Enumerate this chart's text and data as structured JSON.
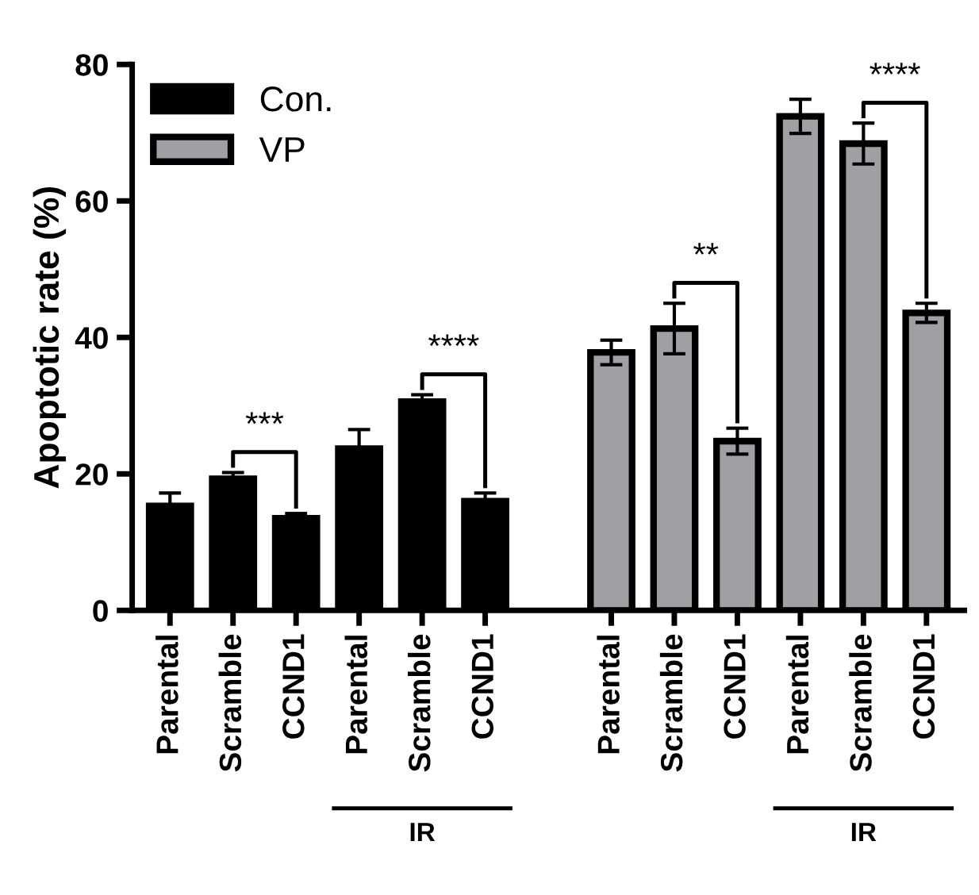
{
  "chart_data": {
    "type": "bar",
    "ylabel": "Apoptotic rate (%)",
    "categories": [
      "Parental",
      "Scramble",
      "CCND1",
      "Parental",
      "Scramble",
      "CCND1",
      null,
      "Parental",
      "Scramble",
      "CCND1",
      "Parental",
      "Scramble",
      "CCND1"
    ],
    "series": [
      {
        "name": "Con.",
        "color": "#000000",
        "values": [
          15.3,
          19.3,
          13.5,
          23.7,
          30.6,
          16.0,
          null,
          null,
          null,
          null,
          null,
          null,
          null
        ],
        "errors": [
          1.9,
          0.9,
          0.7,
          2.8,
          1.0,
          1.2,
          null,
          null,
          null,
          null,
          null,
          null,
          null
        ]
      },
      {
        "name": "VP",
        "color": "#a0a0a4",
        "values": [
          null,
          null,
          null,
          null,
          null,
          null,
          null,
          37.8,
          41.3,
          24.8,
          72.4,
          68.4,
          43.6
        ],
        "errors": [
          null,
          null,
          null,
          null,
          null,
          null,
          null,
          1.8,
          3.7,
          1.9,
          2.5,
          3.0,
          1.4
        ]
      }
    ],
    "ylim": [
      0,
      80
    ],
    "yticks": [
      0,
      20,
      40,
      60,
      80
    ],
    "grid": false,
    "legend": "top left",
    "annotations": [
      "***",
      "****",
      "**",
      "****",
      "IR",
      "IR"
    ]
  }
}
